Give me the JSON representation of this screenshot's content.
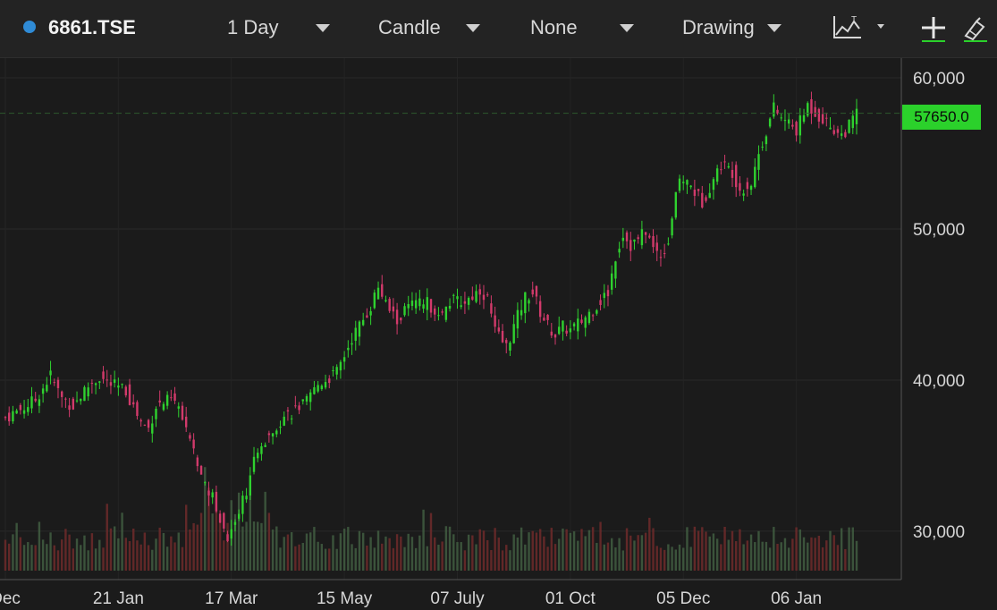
{
  "toolbar": {
    "symbol": "6861.TSE",
    "interval": "1 Day",
    "chart_style": "Candle",
    "indicator": "None",
    "drawing": "Drawing",
    "icons": [
      "chart-type-icon",
      "crosshair-icon",
      "drawing-tool-icon"
    ]
  },
  "colors": {
    "background": "#1b1b1b",
    "up": "#2fd12f",
    "down": "#d23a6b",
    "last_price_tag": "#2bd12b",
    "symbol_dot": "#2f8bd6"
  },
  "last_price_label": "57650.0",
  "chart_data": {
    "type": "candlestick",
    "y_ticks": [
      "60,000",
      "50,000",
      "40,000",
      "30,000"
    ],
    "y_tick_values": [
      60000,
      50000,
      40000,
      30000
    ],
    "ylim": [
      26800,
      61300
    ],
    "x_tick_labels": [
      "Dec",
      "21 Jan",
      "17 Mar",
      "15 May",
      "07 July",
      "01 Oct",
      "05 Dec",
      "06 Jan"
    ],
    "x_tick_positions": [
      0,
      30,
      60,
      90,
      120,
      150,
      180,
      210
    ],
    "x_range": [
      0,
      240
    ],
    "last_price": 57650,
    "grid": true,
    "close_anchors": [
      [
        0,
        37500
      ],
      [
        2,
        37800
      ],
      [
        5,
        38200
      ],
      [
        8,
        38700
      ],
      [
        12,
        40300
      ],
      [
        15,
        38800
      ],
      [
        18,
        38300
      ],
      [
        22,
        39600
      ],
      [
        25,
        40200
      ],
      [
        28,
        39700
      ],
      [
        32,
        39300
      ],
      [
        36,
        37200
      ],
      [
        38,
        36800
      ],
      [
        40,
        38300
      ],
      [
        44,
        38700
      ],
      [
        46,
        38200
      ],
      [
        48,
        36500
      ],
      [
        52,
        33600
      ],
      [
        55,
        32200
      ],
      [
        57,
        30800
      ],
      [
        59,
        29500
      ],
      [
        62,
        31500
      ],
      [
        64,
        32800
      ],
      [
        66,
        34500
      ],
      [
        70,
        36600
      ],
      [
        74,
        37600
      ],
      [
        80,
        38500
      ],
      [
        83,
        39700
      ],
      [
        88,
        40500
      ],
      [
        92,
        42800
      ],
      [
        95,
        44000
      ],
      [
        97,
        44900
      ],
      [
        99,
        46200
      ],
      [
        101,
        45000
      ],
      [
        104,
        43900
      ],
      [
        107,
        44900
      ],
      [
        112,
        45100
      ],
      [
        116,
        44300
      ],
      [
        118,
        45200
      ],
      [
        122,
        45200
      ],
      [
        126,
        46000
      ],
      [
        128,
        45400
      ],
      [
        130,
        43200
      ],
      [
        133,
        42200
      ],
      [
        136,
        44200
      ],
      [
        138,
        45500
      ],
      [
        140,
        45800
      ],
      [
        142,
        44500
      ],
      [
        144,
        43600
      ],
      [
        146,
        43000
      ],
      [
        148,
        43500
      ],
      [
        150,
        43300
      ],
      [
        153,
        43900
      ],
      [
        156,
        44700
      ],
      [
        160,
        45800
      ],
      [
        162,
        48200
      ],
      [
        164,
        49700
      ],
      [
        166,
        48900
      ],
      [
        168,
        49300
      ],
      [
        170,
        49900
      ],
      [
        172,
        48700
      ],
      [
        174,
        48300
      ],
      [
        176,
        49200
      ],
      [
        178,
        52500
      ],
      [
        180,
        53300
      ],
      [
        182,
        52800
      ],
      [
        185,
        51800
      ],
      [
        188,
        53300
      ],
      [
        190,
        54300
      ],
      [
        193,
        53800
      ],
      [
        195,
        52600
      ],
      [
        198,
        53000
      ],
      [
        200,
        55000
      ],
      [
        202,
        56500
      ],
      [
        204,
        58000
      ],
      [
        206,
        57300
      ],
      [
        208,
        57000
      ],
      [
        210,
        56500
      ],
      [
        213,
        58200
      ],
      [
        216,
        57500
      ],
      [
        219,
        56800
      ],
      [
        222,
        56200
      ],
      [
        224,
        56800
      ],
      [
        226,
        57650
      ]
    ],
    "volume_ylim": [
      0,
      30000000
    ],
    "volume_note": "volume bars along the bottom of the price pane"
  }
}
